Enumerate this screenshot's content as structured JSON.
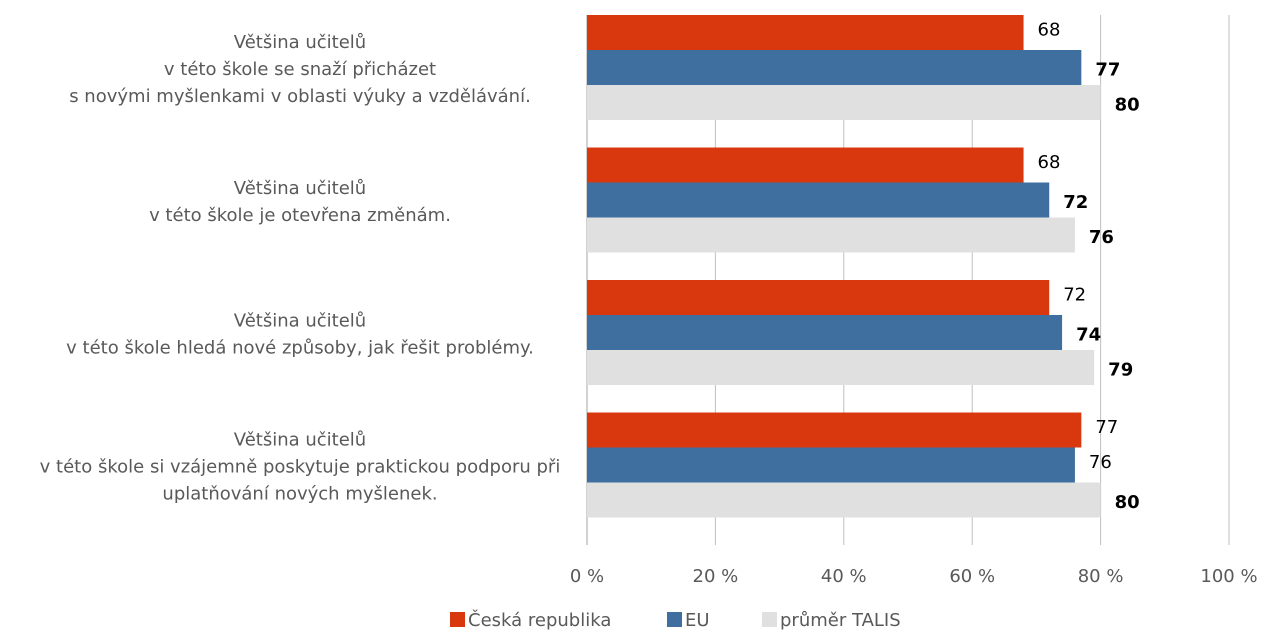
{
  "chart_data": {
    "type": "barh",
    "categories": [
      [
        "Většina učitelů",
        "v této škole se snaží přicházet",
        "s novými myšlenkami v oblasti výuky a vzdělávání."
      ],
      [
        "Většina učitelů",
        "v této škole je otevřena změnám."
      ],
      [
        "Většina učitelů",
        "v této škole hledá nové způsoby, jak řešit problémy."
      ],
      [
        "Většina učitelů",
        "v této škole si vzájemně poskytuje praktickou podporu při",
        "uplatňování nových myšlenek."
      ]
    ],
    "series": [
      {
        "name": "Česká republika",
        "color": "#d9380f",
        "values": [
          68,
          68,
          72,
          77
        ],
        "bold": [
          false,
          false,
          false,
          false
        ]
      },
      {
        "name": "EU",
        "color": "#3f6f9f",
        "values": [
          77,
          72,
          74,
          76
        ],
        "bold": [
          true,
          true,
          true,
          false
        ]
      },
      {
        "name": "průměr TALIS",
        "color": "#e0e0e0",
        "values": [
          80,
          76,
          79,
          80
        ],
        "bold": [
          true,
          true,
          true,
          true
        ]
      }
    ],
    "xlim": [
      0,
      100
    ],
    "xticks": [
      {
        "value": 0,
        "label": "0 %"
      },
      {
        "value": 20,
        "label": "20 %"
      },
      {
        "value": 40,
        "label": "40 %"
      },
      {
        "value": 60,
        "label": "60 %"
      },
      {
        "value": 80,
        "label": "80 %"
      },
      {
        "value": 100,
        "label": "100 %"
      }
    ],
    "grid": true,
    "legend": "bottom"
  }
}
